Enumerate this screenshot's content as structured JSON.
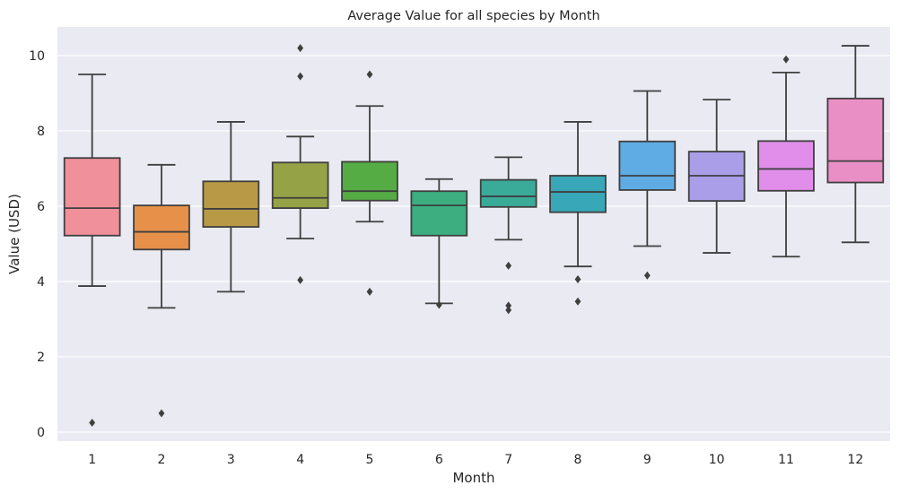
{
  "chart_data": {
    "type": "box",
    "title": "Average Value for all species by Month",
    "xlabel": "Month",
    "ylabel": "Value (USD)",
    "ylim": [
      -0.2,
      10.75
    ],
    "yticks": [
      0,
      2,
      4,
      6,
      8,
      10
    ],
    "grid": true,
    "categories": [
      "1",
      "2",
      "3",
      "4",
      "5",
      "6",
      "7",
      "8",
      "9",
      "10",
      "11",
      "12"
    ],
    "colors": [
      "#f0909a",
      "#e6904a",
      "#b89946",
      "#96a246",
      "#55ab44",
      "#3cae7f",
      "#3aaa99",
      "#38a7b7",
      "#5fabe3",
      "#aa9ee8",
      "#e08ee9",
      "#ea8fc6"
    ],
    "boxes": [
      {
        "month": "1",
        "whisker_low": 3.88,
        "q1": 5.22,
        "median": 5.95,
        "q3": 7.28,
        "whisker_high": 9.5,
        "outliers": [
          0.25
        ]
      },
      {
        "month": "2",
        "whisker_low": 3.3,
        "q1": 4.85,
        "median": 5.32,
        "q3": 6.02,
        "whisker_high": 7.1,
        "outliers": [
          0.5
        ]
      },
      {
        "month": "3",
        "whisker_low": 3.73,
        "q1": 5.45,
        "median": 5.93,
        "q3": 6.66,
        "whisker_high": 8.24,
        "outliers": []
      },
      {
        "month": "4",
        "whisker_low": 5.14,
        "q1": 5.95,
        "median": 6.22,
        "q3": 7.16,
        "whisker_high": 7.85,
        "outliers": [
          10.2,
          9.45,
          4.04
        ]
      },
      {
        "month": "5",
        "whisker_low": 5.59,
        "q1": 6.15,
        "median": 6.4,
        "q3": 7.18,
        "whisker_high": 8.66,
        "outliers": [
          9.5,
          3.73
        ]
      },
      {
        "month": "6",
        "whisker_low": 3.42,
        "q1": 5.22,
        "median": 6.02,
        "q3": 6.4,
        "whisker_high": 6.72,
        "outliers": [
          3.38
        ]
      },
      {
        "month": "7",
        "whisker_low": 5.11,
        "q1": 5.98,
        "median": 6.26,
        "q3": 6.7,
        "whisker_high": 7.3,
        "outliers": [
          4.42,
          3.36,
          3.24
        ]
      },
      {
        "month": "8",
        "whisker_low": 4.4,
        "q1": 5.84,
        "median": 6.38,
        "q3": 6.81,
        "whisker_high": 8.24,
        "outliers": [
          4.06,
          3.47
        ]
      },
      {
        "month": "9",
        "whisker_low": 4.94,
        "q1": 6.43,
        "median": 6.81,
        "q3": 7.72,
        "whisker_high": 9.06,
        "outliers": [
          4.16
        ]
      },
      {
        "month": "10",
        "whisker_low": 4.76,
        "q1": 6.14,
        "median": 6.81,
        "q3": 7.45,
        "whisker_high": 8.83,
        "outliers": []
      },
      {
        "month": "11",
        "whisker_low": 4.66,
        "q1": 6.41,
        "median": 6.99,
        "q3": 7.73,
        "whisker_high": 9.55,
        "outliers": [
          9.9
        ]
      },
      {
        "month": "12",
        "whisker_low": 5.04,
        "q1": 6.63,
        "median": 7.2,
        "q3": 8.86,
        "whisker_high": 10.26,
        "outliers": []
      }
    ]
  }
}
